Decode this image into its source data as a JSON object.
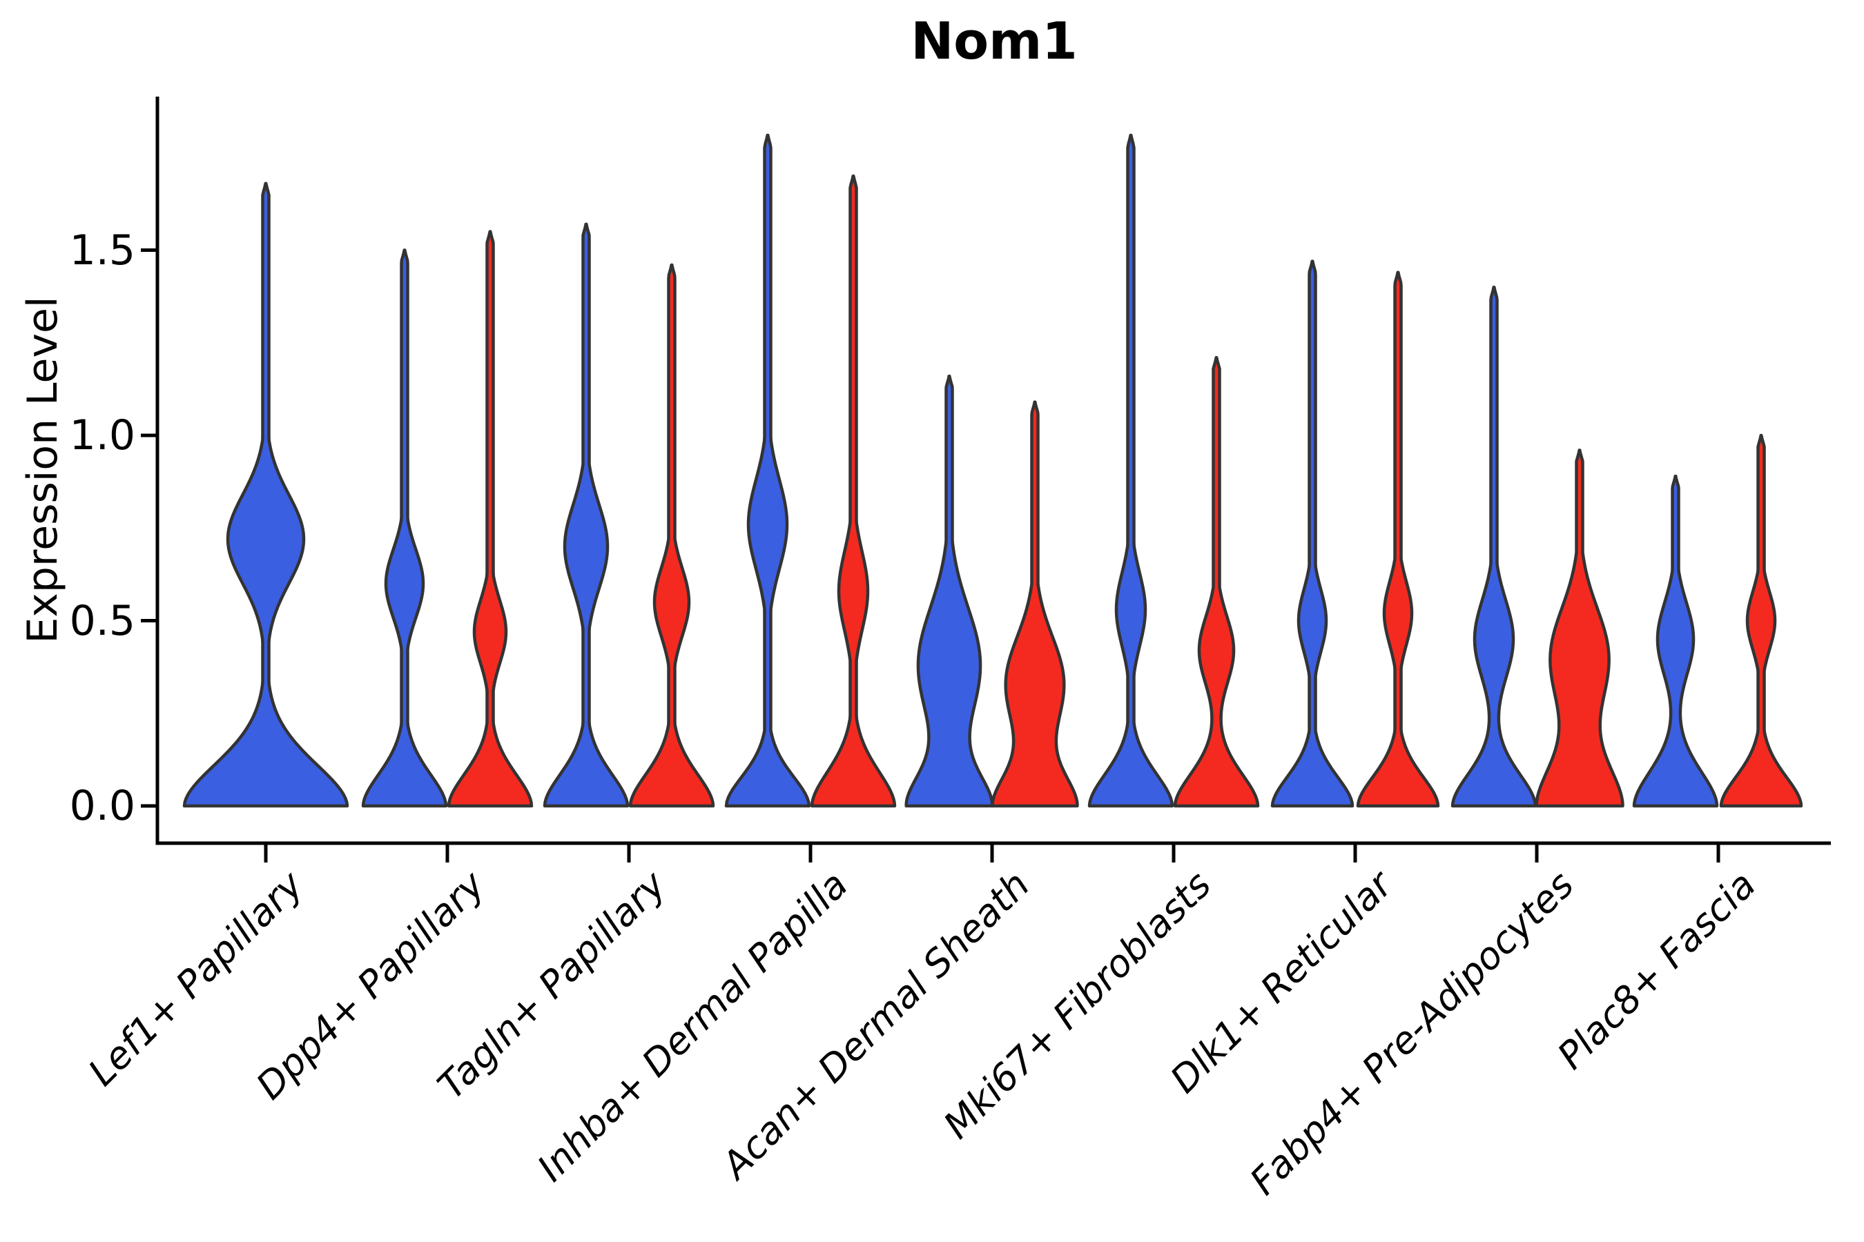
{
  "chart_data": {
    "type": "violin",
    "title": "Nom1",
    "ylabel": "Expression Level",
    "ylim": [
      -0.1,
      1.92
    ],
    "ytick_values": [
      0.0,
      0.5,
      1.0,
      1.5
    ],
    "ytick_labels": [
      "0.0",
      "0.5",
      "1.0",
      "1.5"
    ],
    "grid": false,
    "legend": "none",
    "categories": [
      "Lef1+ Papillary",
      "Dpp4+ Papillary",
      "Tagln+ Papillary",
      "Inhba+ Dermal Papilla",
      "Acan+ Dermal Sheath",
      "Mki67+ Fibroblasts",
      "Dlk1+ Reticular",
      "Fabp4+ Pre-Adipocytes",
      "Plac8+ Fascia"
    ],
    "series_colors": {
      "blue": "#3B5FE1",
      "red": "#F42A20"
    },
    "edge_color": "#333333",
    "axis_color": "#000000",
    "violins": [
      {
        "category": 0,
        "series": "blue",
        "single": true,
        "max_expression": 1.68,
        "profile": {
          "base_hw": 118,
          "base_sigma": 0.17,
          "bulge_hw": 55,
          "bulge_center": 0.72,
          "bulge_sigma": 0.17
        }
      },
      {
        "category": 1,
        "series": "blue",
        "single": false,
        "max_expression": 1.5,
        "profile": {
          "base_hw": 60,
          "base_sigma": 0.13,
          "bulge_hw": 27,
          "bulge_center": 0.6,
          "bulge_sigma": 0.13
        }
      },
      {
        "category": 1,
        "series": "red",
        "single": false,
        "max_expression": 1.55,
        "profile": {
          "base_hw": 60,
          "base_sigma": 0.13,
          "bulge_hw": 23,
          "bulge_center": 0.47,
          "bulge_sigma": 0.12
        }
      },
      {
        "category": 2,
        "series": "blue",
        "single": false,
        "max_expression": 1.57,
        "profile": {
          "base_hw": 60,
          "base_sigma": 0.13,
          "bulge_hw": 31,
          "bulge_center": 0.7,
          "bulge_sigma": 0.16
        }
      },
      {
        "category": 2,
        "series": "red",
        "single": false,
        "max_expression": 1.46,
        "profile": {
          "base_hw": 60,
          "base_sigma": 0.13,
          "bulge_hw": 25,
          "bulge_center": 0.55,
          "bulge_sigma": 0.13
        }
      },
      {
        "category": 3,
        "series": "blue",
        "single": false,
        "max_expression": 1.81,
        "profile": {
          "base_hw": 60,
          "base_sigma": 0.12,
          "bulge_hw": 28,
          "bulge_center": 0.76,
          "bulge_sigma": 0.17
        }
      },
      {
        "category": 3,
        "series": "red",
        "single": false,
        "max_expression": 1.7,
        "profile": {
          "base_hw": 60,
          "base_sigma": 0.14,
          "bulge_hw": 21,
          "bulge_center": 0.58,
          "bulge_sigma": 0.15
        }
      },
      {
        "category": 4,
        "series": "blue",
        "single": false,
        "max_expression": 1.16,
        "profile": {
          "base_hw": 60,
          "base_sigma": 0.13,
          "bulge_hw": 45,
          "bulge_center": 0.38,
          "bulge_sigma": 0.22
        }
      },
      {
        "category": 4,
        "series": "red",
        "single": false,
        "max_expression": 1.09,
        "profile": {
          "base_hw": 60,
          "base_sigma": 0.13,
          "bulge_hw": 42,
          "bulge_center": 0.33,
          "bulge_sigma": 0.18
        }
      },
      {
        "category": 5,
        "series": "blue",
        "single": false,
        "max_expression": 1.81,
        "profile": {
          "base_hw": 60,
          "base_sigma": 0.13,
          "bulge_hw": 21,
          "bulge_center": 0.53,
          "bulge_sigma": 0.14
        }
      },
      {
        "category": 5,
        "series": "red",
        "single": false,
        "max_expression": 1.21,
        "profile": {
          "base_hw": 60,
          "base_sigma": 0.13,
          "bulge_hw": 25,
          "bulge_center": 0.42,
          "bulge_sigma": 0.13
        }
      },
      {
        "category": 6,
        "series": "blue",
        "single": false,
        "max_expression": 1.47,
        "profile": {
          "base_hw": 58,
          "base_sigma": 0.12,
          "bulge_hw": 20,
          "bulge_center": 0.5,
          "bulge_sigma": 0.12
        }
      },
      {
        "category": 6,
        "series": "red",
        "single": false,
        "max_expression": 1.44,
        "profile": {
          "base_hw": 58,
          "base_sigma": 0.12,
          "bulge_hw": 20,
          "bulge_center": 0.52,
          "bulge_sigma": 0.12
        }
      },
      {
        "category": 7,
        "series": "blue",
        "single": false,
        "max_expression": 1.4,
        "profile": {
          "base_hw": 60,
          "base_sigma": 0.13,
          "bulge_hw": 28,
          "bulge_center": 0.45,
          "bulge_sigma": 0.15
        }
      },
      {
        "category": 7,
        "series": "red",
        "single": false,
        "max_expression": 0.96,
        "profile": {
          "base_hw": 62,
          "base_sigma": 0.17,
          "bulge_hw": 42,
          "bulge_center": 0.4,
          "bulge_sigma": 0.19
        }
      },
      {
        "category": 8,
        "series": "blue",
        "single": false,
        "max_expression": 0.89,
        "profile": {
          "base_hw": 60,
          "base_sigma": 0.14,
          "bulge_hw": 26,
          "bulge_center": 0.45,
          "bulge_sigma": 0.14
        }
      },
      {
        "category": 8,
        "series": "red",
        "single": false,
        "max_expression": 1.0,
        "profile": {
          "base_hw": 58,
          "base_sigma": 0.12,
          "bulge_hw": 20,
          "bulge_center": 0.5,
          "bulge_sigma": 0.11
        }
      }
    ]
  }
}
